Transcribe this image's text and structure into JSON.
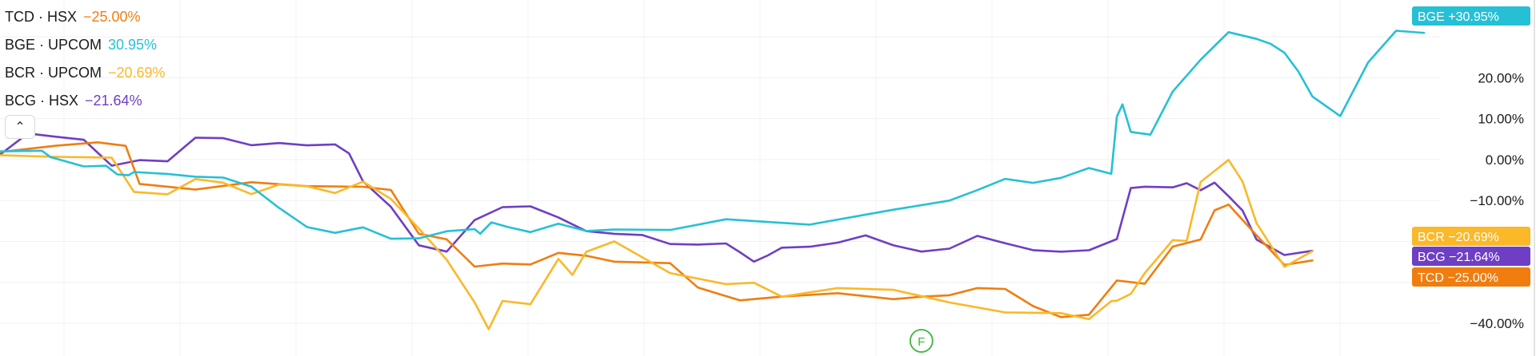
{
  "legend": [
    {
      "symbol": "TCD · HSX",
      "change": "−25.00%",
      "color": "#f07d0f"
    },
    {
      "symbol": "BGE · UPCOM",
      "change": "30.95%",
      "color": "#26c0d6"
    },
    {
      "symbol": "BCR · UPCOM",
      "change": "−20.69%",
      "color": "#fbb829"
    },
    {
      "symbol": "BCG · HSX",
      "change": "−21.64%",
      "color": "#6e3fc4"
    }
  ],
  "collapse_icon": "chevron-up-icon",
  "event_marker": {
    "label": "F",
    "color": "#3ab53a",
    "x": 330
  },
  "chart_data": {
    "type": "line",
    "x_range": [
      0,
      510
    ],
    "ylim": [
      -48,
      39
    ],
    "yticks": [
      "20.00%",
      "10.00%",
      "0.00%",
      "−10.00%",
      "−40.00%"
    ],
    "ytick_values": [
      20,
      10,
      0,
      -10,
      -40
    ],
    "grid": true,
    "series": [
      {
        "name": "BGE",
        "color": "#26c0d6",
        "badge": "BGE   +30.95%",
        "x": [
          0,
          15,
          18,
          30,
          38,
          42,
          46,
          48,
          60,
          70,
          80,
          90,
          100,
          110,
          120,
          130,
          140,
          150,
          160,
          170,
          172,
          176,
          182,
          190,
          200,
          210,
          220,
          240,
          260,
          290,
          320,
          340,
          350,
          360,
          370,
          380,
          390,
          398,
          400,
          402,
          405,
          412,
          420,
          430,
          440,
          450,
          455,
          460,
          465,
          470,
          480,
          490,
          500,
          510
        ],
        "y": [
          2,
          2,
          1,
          -2,
          -2,
          -4,
          -4,
          -3,
          -4,
          -4,
          -4,
          -7,
          -12,
          -16,
          -18,
          -17,
          -19,
          -19,
          -18,
          -17,
          -18,
          -15,
          -17,
          -18,
          -16,
          -17,
          -17,
          -17,
          -15,
          -16,
          -12,
          -10,
          -7,
          -5,
          -6,
          -4,
          -2,
          -3,
          10,
          14,
          7,
          6,
          17,
          24,
          31,
          30,
          28,
          26,
          22,
          15,
          11,
          24,
          31,
          31
        ]
      },
      {
        "name": "BCR",
        "color": "#fbb829",
        "badge": "BCR   −20.69%",
        "x": [
          0,
          20,
          40,
          48,
          60,
          70,
          80,
          90,
          100,
          110,
          120,
          130,
          140,
          150,
          160,
          170,
          175,
          180,
          190,
          200,
          205,
          210,
          220,
          240,
          260,
          270,
          280,
          300,
          320,
          340,
          360,
          380,
          390,
          398,
          400,
          405,
          410,
          420,
          425,
          430,
          440,
          445,
          450,
          460,
          470
        ],
        "y": [
          1,
          1,
          0,
          -8,
          -8,
          -5,
          -6,
          -8,
          -6,
          -7,
          -8,
          -5,
          -10,
          -17,
          -24,
          -35,
          -41,
          -35,
          -35,
          -24,
          -28,
          -23,
          -20,
          -28,
          -30,
          -30,
          -34,
          -31,
          -32,
          -35,
          -37,
          -38,
          -39,
          -35,
          -34,
          -33,
          -28,
          -20,
          -20,
          -5,
          0,
          -5,
          -16,
          -26,
          -22
        ]
      },
      {
        "name": "TCD",
        "color": "#f07d0f",
        "badge": "TCD   −25.00%",
        "x": [
          0,
          20,
          35,
          45,
          50,
          70,
          90,
          110,
          130,
          140,
          150,
          160,
          170,
          180,
          190,
          200,
          210,
          220,
          240,
          250,
          265,
          280,
          300,
          320,
          330,
          340,
          350,
          360,
          370,
          380,
          390,
          400,
          410,
          420,
          430,
          435,
          440,
          450,
          460,
          470
        ],
        "y": [
          2,
          3,
          4,
          3,
          -6,
          -7,
          -6,
          -6,
          -7,
          -7,
          -18,
          -20,
          -26,
          -25,
          -26,
          -23,
          -23,
          -25,
          -25,
          -31,
          -34,
          -33,
          -33,
          -34,
          -34,
          -33,
          -31,
          -32,
          -36,
          -38,
          -38,
          -30,
          -30,
          -21,
          -20,
          -12,
          -11,
          -18,
          -26,
          -25
        ]
      },
      {
        "name": "BCG",
        "color": "#6e3fc4",
        "badge": "BCG   −21.64%",
        "x": [
          0,
          10,
          20,
          30,
          40,
          50,
          60,
          70,
          80,
          90,
          100,
          110,
          120,
          125,
          130,
          140,
          150,
          160,
          170,
          180,
          190,
          200,
          210,
          220,
          230,
          240,
          250,
          260,
          265,
          270,
          275,
          280,
          290,
          300,
          310,
          320,
          330,
          340,
          350,
          360,
          370,
          380,
          390,
          400,
          405,
          410,
          420,
          425,
          430,
          435,
          440,
          445,
          450,
          460,
          470
        ],
        "y": [
          1,
          6,
          6,
          5,
          -2,
          0,
          0,
          5,
          5,
          4,
          4,
          3,
          4,
          1,
          -5,
          -12,
          -21,
          -22,
          -15,
          -12,
          -11,
          -14,
          -18,
          -18,
          -18,
          -21,
          -21,
          -20,
          -23,
          -25,
          -23,
          -22,
          -21,
          -20,
          -19,
          -21,
          -22,
          -22,
          -19,
          -20,
          -22,
          -23,
          -22,
          -19,
          -7,
          -7,
          -7,
          -6,
          -7,
          -6,
          -9,
          -12,
          -20,
          -23,
          -22
        ]
      }
    ]
  }
}
